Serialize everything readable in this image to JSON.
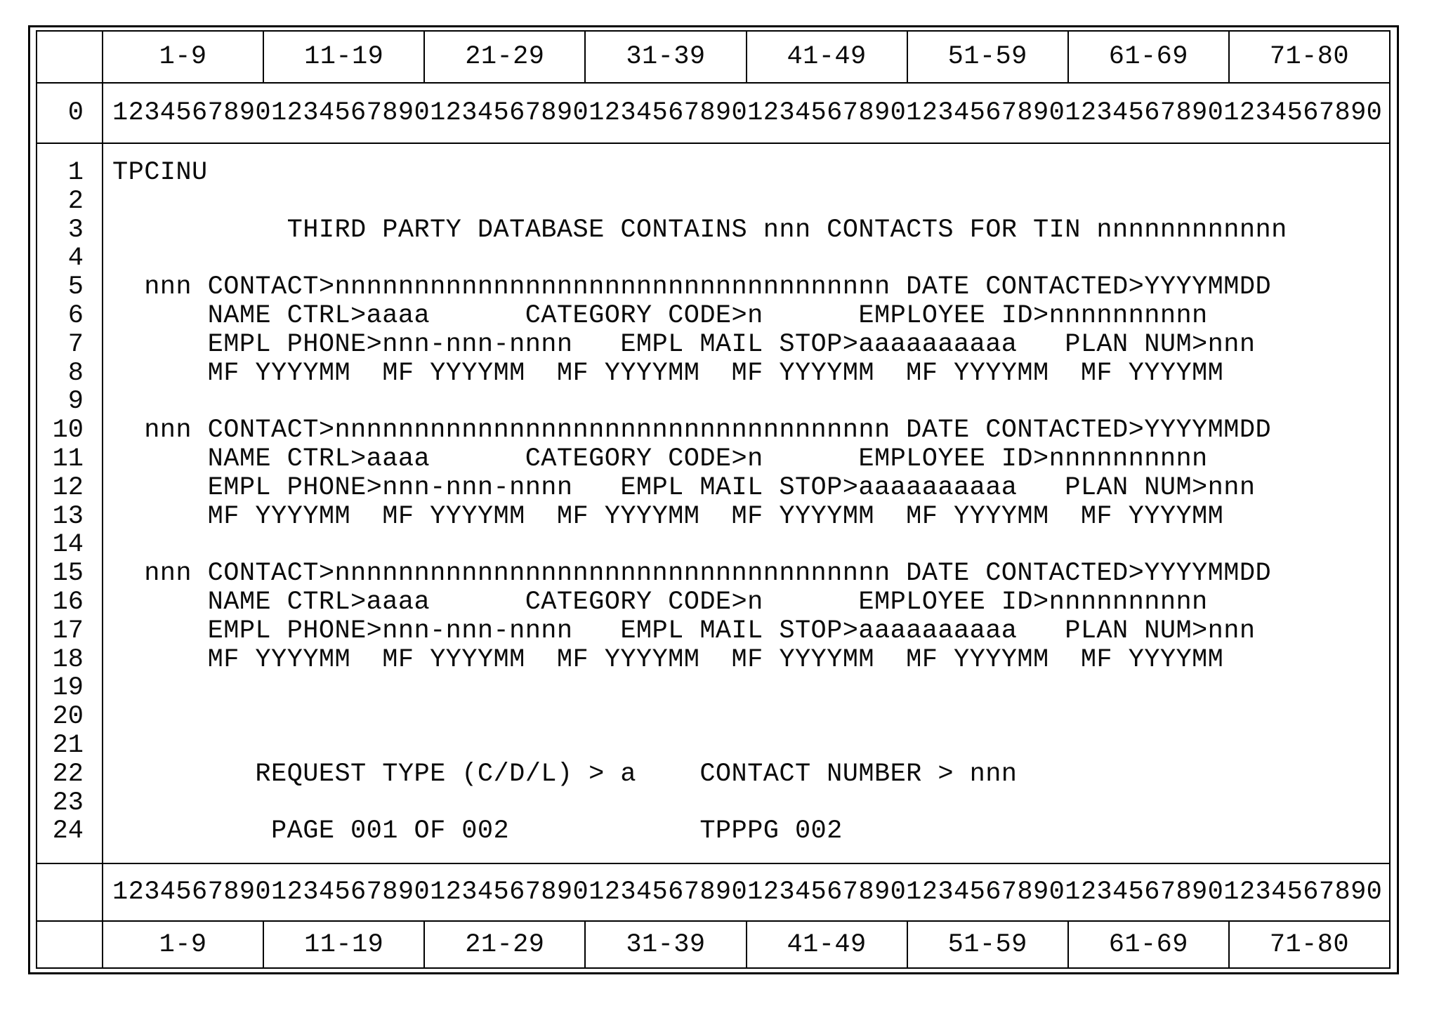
{
  "grid": {
    "column_ranges": [
      "1-9",
      "11-19",
      "21-29",
      "31-39",
      "41-49",
      "51-59",
      "61-69",
      "71-80"
    ],
    "ruler": "12345678901234567890123456789012345678901234567890123456789012345678901234567890",
    "ruler_row_number": "0",
    "row_numbers": [
      "1",
      "2",
      "3",
      "4",
      "5",
      "6",
      "7",
      "8",
      "9",
      "10",
      "11",
      "12",
      "13",
      "14",
      "15",
      "16",
      "17",
      "18",
      "19",
      "20",
      "21",
      "22",
      "23",
      "24"
    ]
  },
  "screen": {
    "screen_id": "TPCINU",
    "lines": [
      "TPCINU",
      "",
      "           THIRD PARTY DATABASE CONTAINS nnn CONTACTS FOR TIN nnnnnnnnnnnn",
      "",
      "  nnn CONTACT>nnnnnnnnnnnnnnnnnnnnnnnnnnnnnnnnnnn DATE CONTACTED>YYYYMMDD",
      "      NAME CTRL>aaaa      CATEGORY CODE>n      EMPLOYEE ID>nnnnnnnnnn",
      "      EMPL PHONE>nnn-nnn-nnnn   EMPL MAIL STOP>aaaaaaaaaa   PLAN NUM>nnn",
      "      MF YYYYMM  MF YYYYMM  MF YYYYMM  MF YYYYMM  MF YYYYMM  MF YYYYMM",
      "",
      "  nnn CONTACT>nnnnnnnnnnnnnnnnnnnnnnnnnnnnnnnnnnn DATE CONTACTED>YYYYMMDD",
      "      NAME CTRL>aaaa      CATEGORY CODE>n      EMPLOYEE ID>nnnnnnnnnn",
      "      EMPL PHONE>nnn-nnn-nnnn   EMPL MAIL STOP>aaaaaaaaaa   PLAN NUM>nnn",
      "      MF YYYYMM  MF YYYYMM  MF YYYYMM  MF YYYYMM  MF YYYYMM  MF YYYYMM",
      "",
      "  nnn CONTACT>nnnnnnnnnnnnnnnnnnnnnnnnnnnnnnnnnnn DATE CONTACTED>YYYYMMDD",
      "      NAME CTRL>aaaa      CATEGORY CODE>n      EMPLOYEE ID>nnnnnnnnnn",
      "      EMPL PHONE>nnn-nnn-nnnn   EMPL MAIL STOP>aaaaaaaaaa   PLAN NUM>nnn",
      "      MF YYYYMM  MF YYYYMM  MF YYYYMM  MF YYYYMM  MF YYYYMM  MF YYYYMM",
      "",
      "",
      "",
      "         REQUEST TYPE (C/D/L) > a    CONTACT NUMBER > nnn",
      "",
      "          PAGE 001 OF 002            TPPPG 002"
    ]
  }
}
